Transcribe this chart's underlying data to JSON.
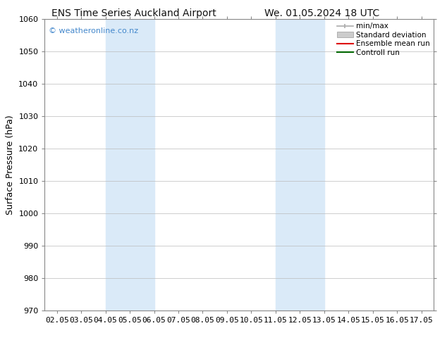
{
  "title1": "ENS Time Series Auckland Airport",
  "title2": "We. 01.05.2024 18 UTC",
  "ylabel": "Surface Pressure (hPa)",
  "ylim": [
    970,
    1060
  ],
  "yticks": [
    970,
    980,
    990,
    1000,
    1010,
    1020,
    1030,
    1040,
    1050,
    1060
  ],
  "xlim": [
    1.55,
    17.55
  ],
  "xtick_positions": [
    2.05,
    3.05,
    4.05,
    5.05,
    6.05,
    7.05,
    8.05,
    9.05,
    10.05,
    11.05,
    12.05,
    13.05,
    14.05,
    15.05,
    16.05,
    17.05
  ],
  "xtick_labels": [
    "02.05",
    "03.05",
    "04.05",
    "05.05",
    "06.05",
    "07.05",
    "08.05",
    "09.05",
    "10.05",
    "11.05",
    "12.05",
    "13.05",
    "14.05",
    "15.05",
    "16.05",
    "17.05"
  ],
  "shaded_bands": [
    {
      "x_start": 4.05,
      "x_end": 6.05
    },
    {
      "x_start": 11.05,
      "x_end": 13.05
    }
  ],
  "shaded_color": "#daeaf8",
  "watermark": "© weatheronline.co.nz",
  "watermark_color": "#4488cc",
  "bg_color": "#ffffff",
  "plot_bg_color": "#ffffff",
  "grid_color": "#bbbbbb",
  "spine_color": "#888888",
  "legend_items": [
    {
      "label": "min/max",
      "color": "#aaaaaa",
      "style": "minmax"
    },
    {
      "label": "Standard deviation",
      "color": "#cccccc",
      "style": "stddev"
    },
    {
      "label": "Ensemble mean run",
      "color": "#dd0000",
      "style": "line"
    },
    {
      "label": "Controll run",
      "color": "#006600",
      "style": "line"
    }
  ],
  "title_fontsize": 10,
  "ylabel_fontsize": 9,
  "tick_fontsize": 8,
  "watermark_fontsize": 8,
  "legend_fontsize": 7.5
}
